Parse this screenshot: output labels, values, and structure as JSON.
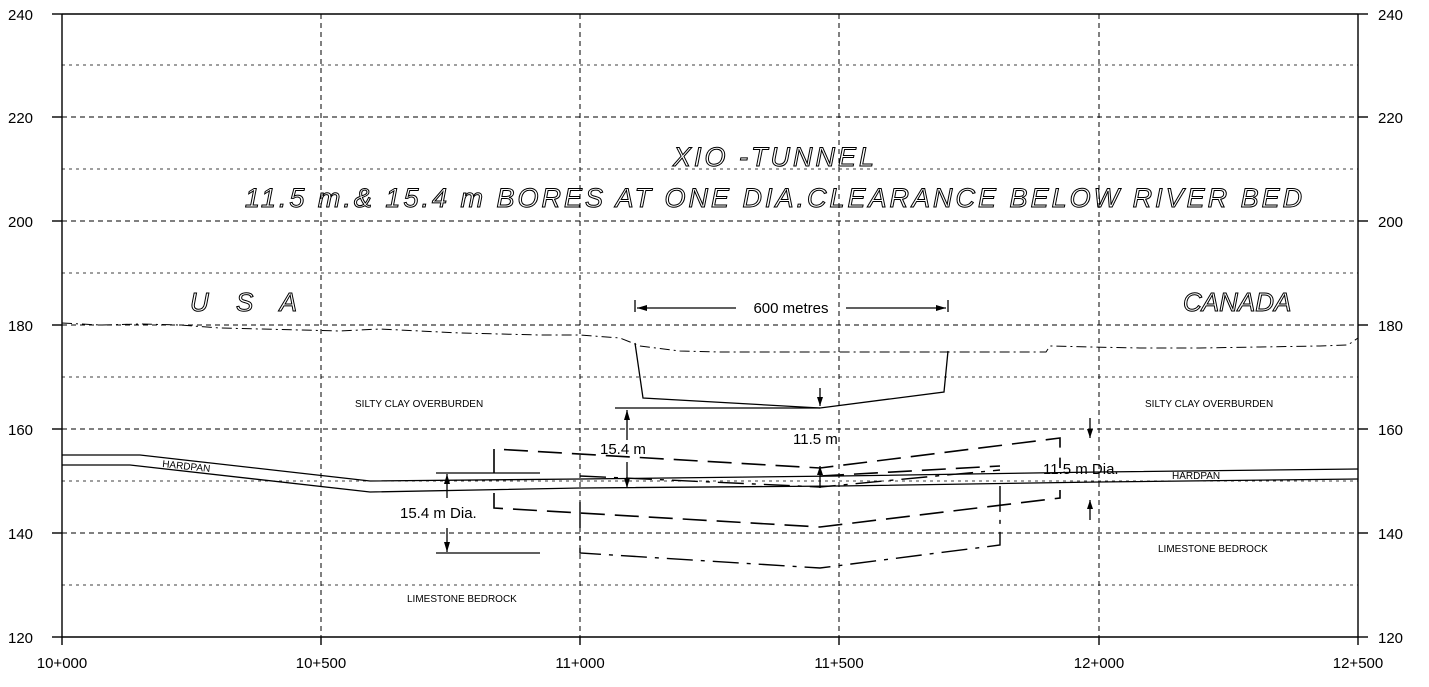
{
  "title": {
    "line1": "XIO -TUNNEL",
    "line2": "11.5 m.& 15.4 m BORES AT ONE DIA.CLEARANCE BELOW RIVER BED"
  },
  "countries": {
    "left": "U S A",
    "right": "CANADA"
  },
  "axes": {
    "y_ticks": [
      "240",
      "220",
      "200",
      "180",
      "160",
      "140",
      "120"
    ],
    "x_ticks": [
      "10+000",
      "10+500",
      "11+000",
      "11+500",
      "12+000",
      "12+500"
    ]
  },
  "strata": {
    "overburden_left": "SILTY CLAY OVERBURDEN",
    "overburden_right": "SILTY CLAY OVERBURDEN",
    "hardpan_left": "HARDPAN",
    "hardpan_right": "HARDPAN",
    "bedrock_left": "LIMESTONE BEDROCK",
    "bedrock_right": "LIMESTONE BEDROCK"
  },
  "dimensions": {
    "span": "600 metres",
    "dia_154_label": "15.4 m Dia.",
    "depth_154": "15.4 m",
    "depth_115": "11.5 m",
    "dia_115_label": "11.5 m Dia."
  }
}
